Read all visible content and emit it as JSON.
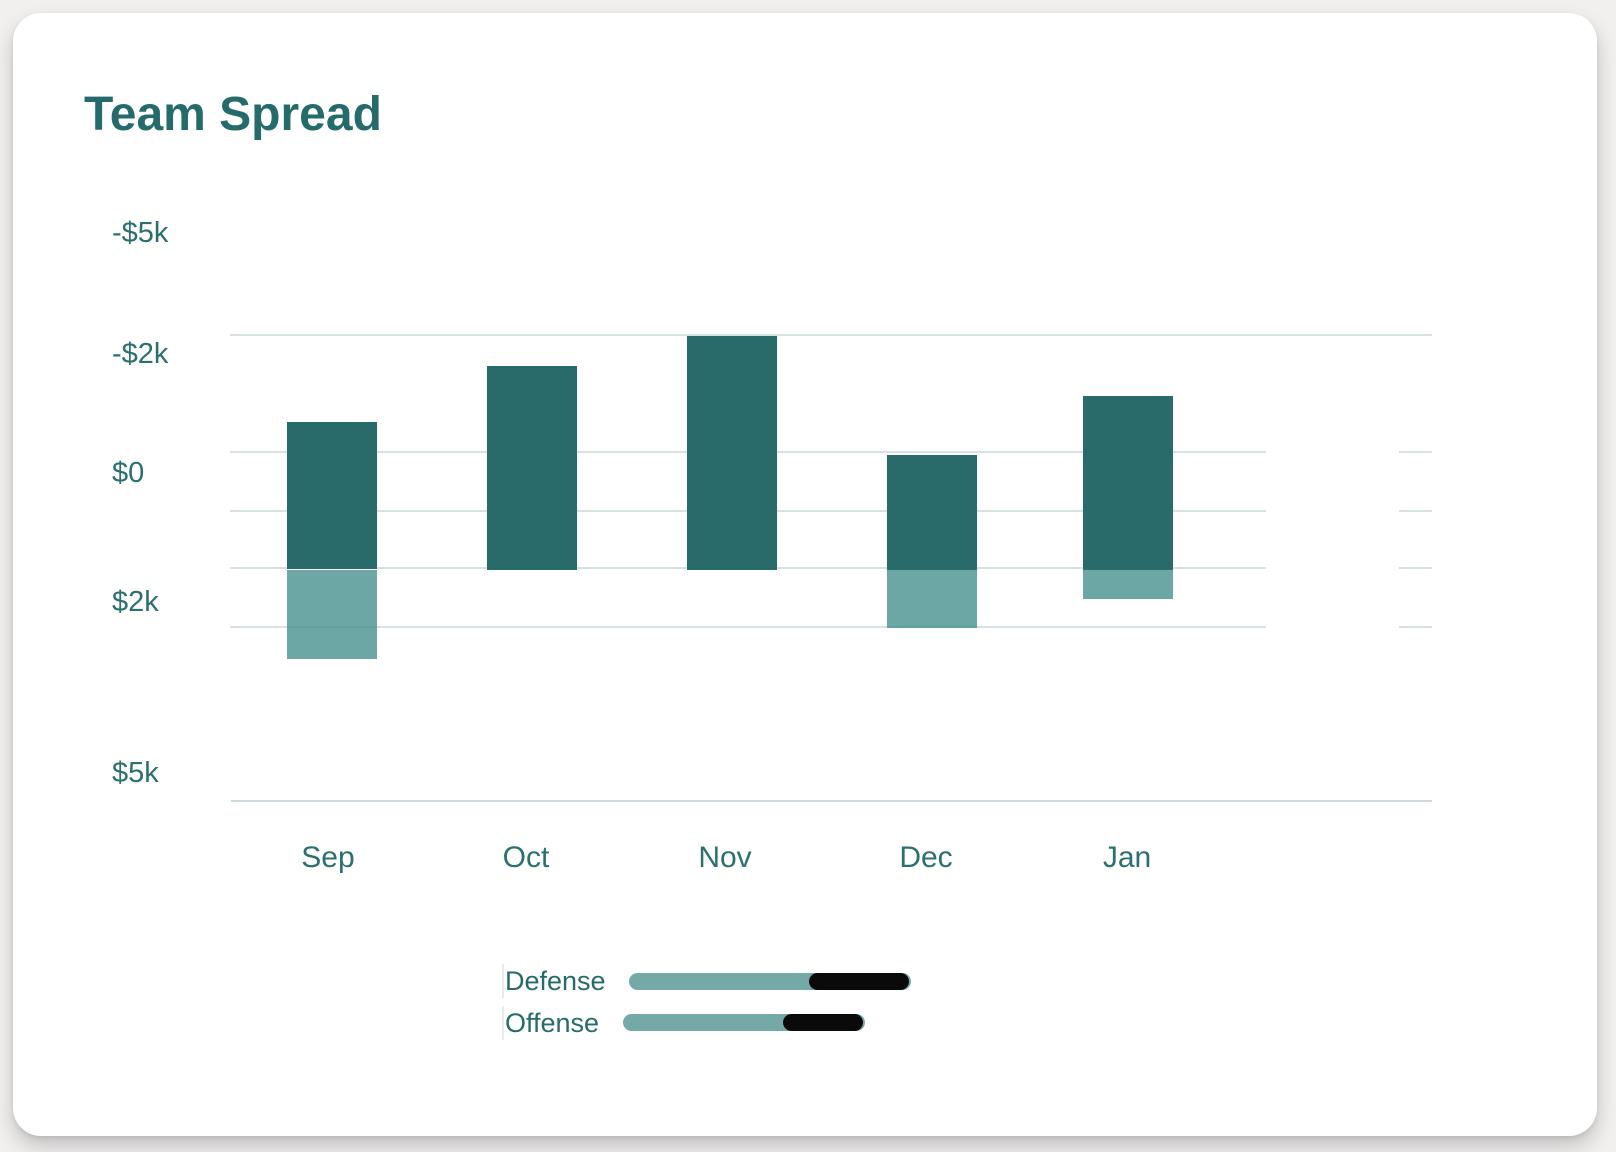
{
  "page": {
    "background": "#f2f0ef",
    "card_background": "#ffffff"
  },
  "chart_data": {
    "type": "bar",
    "title": "Team Spread",
    "categories": [
      "Sep",
      "Oct",
      "Nov",
      "Dec",
      "Jan"
    ],
    "y_ticks": [
      {
        "label": "-$5k",
        "value_k": -5
      },
      {
        "label": "-$2k",
        "value_k": -2
      },
      {
        "label": "$0",
        "value_k": 0
      },
      {
        "label": "$2k",
        "value_k": 2
      },
      {
        "label": "$5k",
        "value_k": 5
      }
    ],
    "axis_orientation": "negative-up",
    "grid": true,
    "legend_position": "bottom",
    "baseline_value_k": 1.5,
    "series": [
      {
        "name": "Defense",
        "segment": "upper",
        "color": "#296b6a",
        "from_k": [
          -0.85,
          -1.8,
          -2.45,
          -0.3,
          -1.3
        ],
        "to_k": [
          1.5,
          1.5,
          1.5,
          1.5,
          1.5
        ]
      },
      {
        "name": "Offense",
        "segment": "lower",
        "color": "#6ca7a6",
        "from_k": [
          1.5,
          1.5,
          1.5,
          1.5,
          1.5
        ],
        "to_k": [
          3.0,
          1.5,
          1.5,
          2.45,
          1.95
        ]
      }
    ]
  },
  "legend": {
    "items": [
      {
        "label": "Defense",
        "filled_ratio": 0.64
      },
      {
        "label": "Offense",
        "filled_ratio": 0.66
      }
    ],
    "colors": {
      "fill": "#74a9a7",
      "remainder": "#0a0a0a"
    }
  },
  "colors": {
    "title_text": "#266b6b",
    "axis_text": "#2c6f6f",
    "gridline": "#d7e1e3",
    "bar_dark": "#296b6a",
    "bar_light": "#6ca7a6"
  }
}
